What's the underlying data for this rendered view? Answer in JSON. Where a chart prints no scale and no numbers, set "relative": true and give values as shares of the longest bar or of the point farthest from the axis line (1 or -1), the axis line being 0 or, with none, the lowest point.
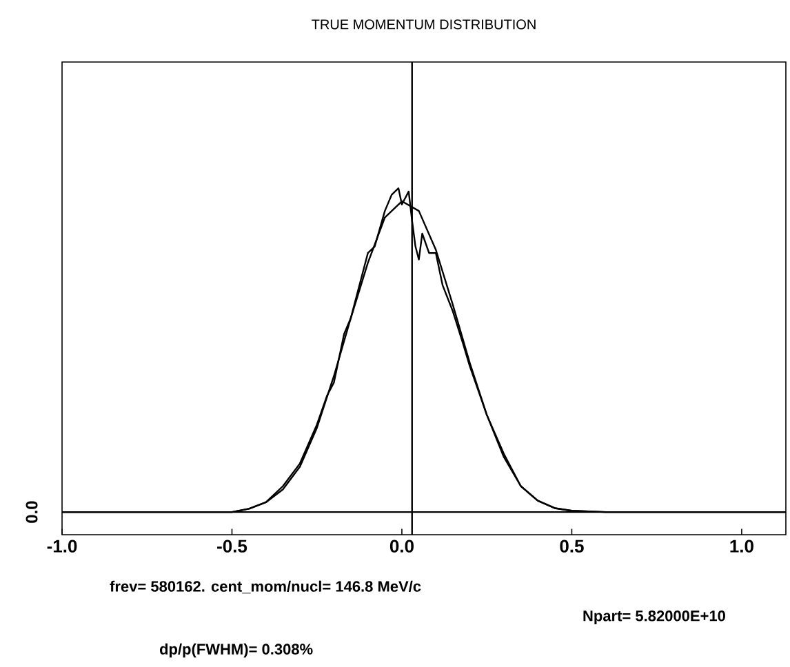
{
  "chart_data": {
    "type": "line",
    "title": "TRUE MOMENTUM DISTRIBUTION",
    "relative": true,
    "x": [
      -1.0,
      -0.5,
      -0.45,
      -0.4,
      -0.35,
      -0.3,
      -0.25,
      -0.2,
      -0.15,
      -0.1,
      -0.05,
      0.0,
      0.05,
      0.1,
      0.15,
      0.2,
      0.25,
      0.3,
      0.35,
      0.4,
      0.45,
      0.5,
      0.6,
      1.13
    ],
    "series": [
      {
        "color": "#000000",
        "x": [
          -1.0,
          -0.5,
          -0.45,
          -0.4,
          -0.35,
          -0.3,
          -0.25,
          -0.22,
          -0.2,
          -0.17,
          -0.15,
          -0.12,
          -0.1,
          -0.08,
          -0.05,
          -0.03,
          -0.01,
          0.0,
          0.02,
          0.03,
          0.04,
          0.05,
          0.06,
          0.08,
          0.1,
          0.12,
          0.15,
          0.18,
          0.2,
          0.25,
          0.3,
          0.35,
          0.4,
          0.45,
          0.5,
          0.6,
          1.13
        ],
        "values": [
          0,
          0,
          0.01,
          0.03,
          0.08,
          0.15,
          0.27,
          0.36,
          0.4,
          0.55,
          0.6,
          0.72,
          0.8,
          0.82,
          0.93,
          0.98,
          1.0,
          0.95,
          0.99,
          0.9,
          0.82,
          0.78,
          0.86,
          0.8,
          0.8,
          0.7,
          0.62,
          0.52,
          0.45,
          0.3,
          0.18,
          0.08,
          0.035,
          0.012,
          0.004,
          0,
          0
        ]
      },
      {
        "color": "#000000",
        "values": [
          0,
          0,
          0.01,
          0.03,
          0.07,
          0.14,
          0.26,
          0.42,
          0.6,
          0.77,
          0.91,
          0.96,
          0.93,
          0.81,
          0.64,
          0.46,
          0.3,
          0.17,
          0.08,
          0.035,
          0.012,
          0.004,
          0,
          0
        ]
      }
    ],
    "xlim": [
      -1.0,
      1.13
    ],
    "xticks": [
      {
        "value": -1.0,
        "label": "-1.0"
      },
      {
        "value": -0.5,
        "label": "-0.5"
      },
      {
        "value": 0.0,
        "label": "0.0"
      },
      {
        "value": 0.5,
        "label": "0.5"
      },
      {
        "value": 1.0,
        "label": "1.0"
      }
    ],
    "ref_lines": [
      {
        "axis": "x",
        "value": 0.03
      }
    ],
    "annotations": [
      "0.0",
      "frev= 580162. cent_mom/nucl= 146.8 MeV/c",
      "Npart= 5.82000E+10",
      "dp/p(FWHM)=     0.308%"
    ],
    "grid": false,
    "marker": "none",
    "line_style": "solid"
  }
}
